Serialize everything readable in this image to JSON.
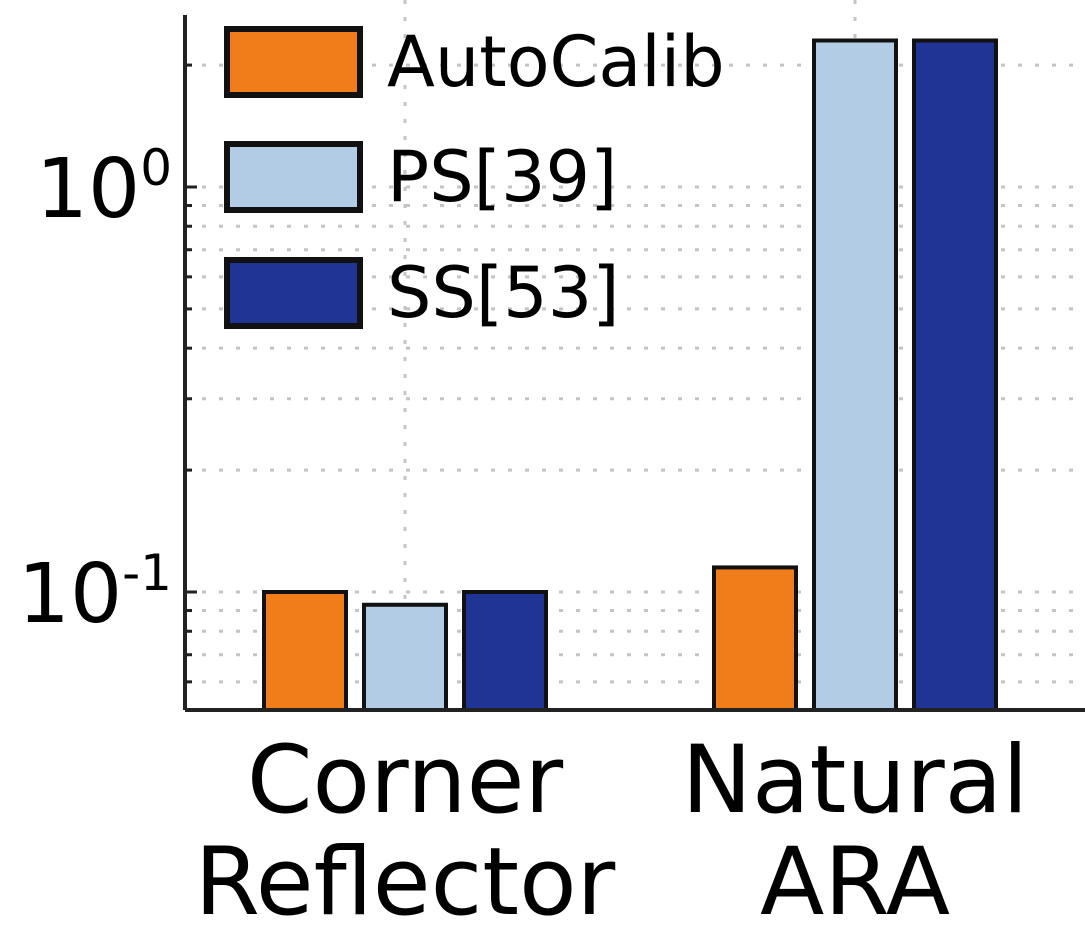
{
  "chart_data": {
    "type": "bar",
    "yscale": "log",
    "ylim": [
      0.05,
      3
    ],
    "grid": true,
    "legend_position": "top-left",
    "categories": [
      {
        "lines": [
          "Corner",
          "Reflector"
        ]
      },
      {
        "lines": [
          "Natural",
          "ARA"
        ]
      }
    ],
    "series": [
      {
        "name": "AutoCalib",
        "color": "#f07d1a",
        "values": [
          0.1,
          0.115
        ]
      },
      {
        "name": "PS[39]",
        "color": "#b3cce6",
        "values": [
          0.093,
          2.3
        ]
      },
      {
        "name": "SS[53]",
        "color": "#1f3494",
        "values": [
          0.1,
          2.3
        ]
      }
    ],
    "yticks": [
      {
        "value": 0.1,
        "base": "10",
        "exp": "-1"
      },
      {
        "value": 1,
        "base": "10",
        "exp": "0"
      }
    ]
  }
}
